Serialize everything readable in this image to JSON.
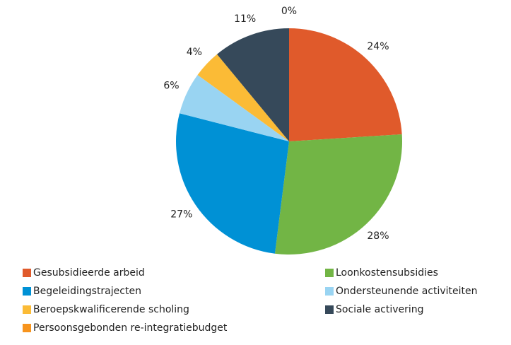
{
  "chart_data": {
    "type": "pie",
    "categories": [
      "Gesubsidieerde arbeid",
      "Loonkostensubsidies",
      "Begeleidingstrajecten",
      "Ondersteunende activiteiten",
      "Beroepskwalificerende scholing",
      "Sociale activering",
      "Persoonsgebonden re-integratiebudget"
    ],
    "values": [
      24,
      28,
      27,
      6,
      4,
      11,
      0
    ],
    "value_labels": [
      "24%",
      "28%",
      "27%",
      "6%",
      "4%",
      "11%",
      "0%"
    ],
    "colors": [
      "#e05a2b",
      "#72b545",
      "#0091d5",
      "#99d4f2",
      "#fbbb36",
      "#36495a",
      "#f7941d"
    ]
  }
}
